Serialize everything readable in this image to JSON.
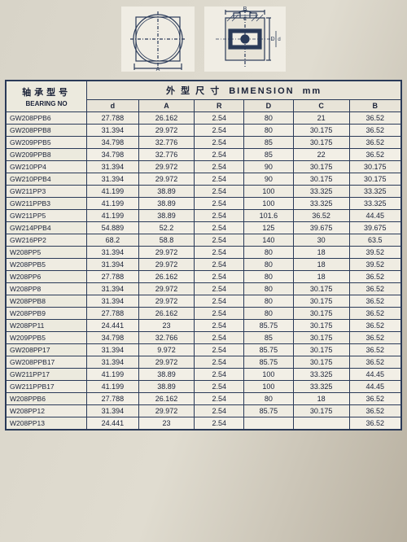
{
  "header": {
    "model_label": "轴承型号",
    "dim_label": "外 型 尺 寸",
    "dim_label_en": "BIMENSION",
    "unit": "mm",
    "bearing_label": "BEARING NO",
    "cols": [
      "d",
      "A",
      "R",
      "D",
      "C",
      "B"
    ]
  },
  "diagram": {
    "style": {
      "stroke": "#2a3a58",
      "fill": "#f0ede4",
      "hatch": "#2a3a58"
    },
    "labels": {
      "A": "A",
      "B": "B",
      "C": "C",
      "D": "D",
      "R": "R",
      "d": "d"
    }
  },
  "table": {
    "font_size": 9,
    "border_color": "#2a3a58",
    "row_bg": "#f2efe6",
    "header_bg": "#e8e4d8"
  },
  "rows": [
    {
      "no": "GW208PPB6",
      "d": "27.788",
      "A": "26.162",
      "R": "2.54",
      "D": "80",
      "C": "21",
      "B": "36.52"
    },
    {
      "no": "GW208PPB8",
      "d": "31.394",
      "A": "29.972",
      "R": "2.54",
      "D": "80",
      "C": "30.175",
      "B": "36.52"
    },
    {
      "no": "GW209PPB5",
      "d": "34.798",
      "A": "32.776",
      "R": "2.54",
      "D": "85",
      "C": "30.175",
      "B": "36.52"
    },
    {
      "no": "GW209PPB8",
      "d": "34.798",
      "A": "32.776",
      "R": "2.54",
      "D": "85",
      "C": "22",
      "B": "36.52"
    },
    {
      "no": "GW210PP4",
      "d": "31.394",
      "A": "29.972",
      "R": "2.54",
      "D": "90",
      "C": "30.175",
      "B": "30.175"
    },
    {
      "no": "GW210PPB4",
      "d": "31.394",
      "A": "29.972",
      "R": "2.54",
      "D": "90",
      "C": "30.175",
      "B": "30.175"
    },
    {
      "no": "GW211PP3",
      "d": "41.199",
      "A": "38.89",
      "R": "2.54",
      "D": "100",
      "C": "33.325",
      "B": "33.325"
    },
    {
      "no": "GW211PPB3",
      "d": "41.199",
      "A": "38.89",
      "R": "2.54",
      "D": "100",
      "C": "33.325",
      "B": "33.325"
    },
    {
      "no": "GW211PP5",
      "d": "41.199",
      "A": "38.89",
      "R": "2.54",
      "D": "101.6",
      "C": "36.52",
      "B": "44.45"
    },
    {
      "no": "GW214PPB4",
      "d": "54.889",
      "A": "52.2",
      "R": "2.54",
      "D": "125",
      "C": "39.675",
      "B": "39.675"
    },
    {
      "no": "GW216PP2",
      "d": "68.2",
      "A": "58.8",
      "R": "2.54",
      "D": "140",
      "C": "30",
      "B": "63.5"
    },
    {
      "no": "W208PP5",
      "d": "31.394",
      "A": "29.972",
      "R": "2.54",
      "D": "80",
      "C": "18",
      "B": "39.52"
    },
    {
      "no": "W208PPB5",
      "d": "31.394",
      "A": "29.972",
      "R": "2.54",
      "D": "80",
      "C": "18",
      "B": "39.52"
    },
    {
      "no": "W208PP6",
      "d": "27.788",
      "A": "26.162",
      "R": "2.54",
      "D": "80",
      "C": "18",
      "B": "36.52"
    },
    {
      "no": "W208PP8",
      "d": "31.394",
      "A": "29.972",
      "R": "2.54",
      "D": "80",
      "C": "30.175",
      "B": "36.52"
    },
    {
      "no": "W208PPB8",
      "d": "31.394",
      "A": "29.972",
      "R": "2.54",
      "D": "80",
      "C": "30.175",
      "B": "36.52"
    },
    {
      "no": "W208PPB9",
      "d": "27.788",
      "A": "26.162",
      "R": "2.54",
      "D": "80",
      "C": "30.175",
      "B": "36.52"
    },
    {
      "no": "W208PP11",
      "d": "24.441",
      "A": "23",
      "R": "2.54",
      "D": "85.75",
      "C": "30.175",
      "B": "36.52"
    },
    {
      "no": "W209PPB5",
      "d": "34.798",
      "A": "32.766",
      "R": "2.54",
      "D": "85",
      "C": "30.175",
      "B": "36.52"
    },
    {
      "no": "GW208PP17",
      "d": "31.394",
      "A": "9.972",
      "R": "2.54",
      "D": "85.75",
      "C": "30.175",
      "B": "36.52"
    },
    {
      "no": "GW208PPB17",
      "d": "31.394",
      "A": "29.972",
      "R": "2.54",
      "D": "85.75",
      "C": "30.175",
      "B": "36.52"
    },
    {
      "no": "GW211PP17",
      "d": "41.199",
      "A": "38.89",
      "R": "2.54",
      "D": "100",
      "C": "33.325",
      "B": "44.45"
    },
    {
      "no": "GW211PPB17",
      "d": "41.199",
      "A": "38.89",
      "R": "2.54",
      "D": "100",
      "C": "33.325",
      "B": "44.45"
    },
    {
      "no": "W208PPB6",
      "d": "27.788",
      "A": "26.162",
      "R": "2.54",
      "D": "80",
      "C": "18",
      "B": "36.52"
    },
    {
      "no": "W208PP12",
      "d": "31.394",
      "A": "29.972",
      "R": "2.54",
      "D": "85.75",
      "C": "30.175",
      "B": "36.52"
    },
    {
      "no": "W208PP13",
      "d": "24.441",
      "A": "23",
      "R": "2.54",
      "D": "",
      "C": "",
      "B": "36.52"
    }
  ]
}
